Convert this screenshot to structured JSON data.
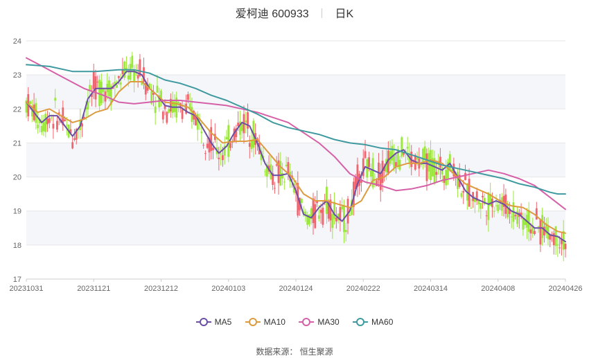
{
  "chart_data": {
    "type": "candlestick",
    "title": "爱柯迪 600933",
    "period": "日K",
    "ylim": [
      17,
      24
    ],
    "y_ticks": [
      17,
      18,
      19,
      20,
      21,
      22,
      23,
      24
    ],
    "x_tick_labels": [
      "20231031",
      "20231121",
      "20231212",
      "20240103",
      "20240124",
      "20240222",
      "20240314",
      "20240408",
      "20240426"
    ],
    "colors": {
      "up": "#f0646e",
      "down": "#9be83c",
      "ma5": "#6a4fa4",
      "ma10": "#dd9a3f",
      "ma30": "#d660a8",
      "ma60": "#3f9aa0"
    },
    "series": [
      {
        "name": "MA5",
        "color": "#6a4fa4",
        "values": [
          [
            0,
            22.2
          ],
          [
            4,
            21.9
          ],
          [
            8,
            21.6
          ],
          [
            12,
            21.8
          ],
          [
            16,
            21.8
          ],
          [
            20,
            21.5
          ],
          [
            24,
            21.2
          ],
          [
            28,
            21.5
          ],
          [
            32,
            22.3
          ],
          [
            36,
            22.6
          ],
          [
            40,
            22.6
          ],
          [
            44,
            22.6
          ],
          [
            48,
            22.8
          ],
          [
            52,
            23.1
          ],
          [
            56,
            23.1
          ],
          [
            60,
            23.0
          ],
          [
            64,
            22.6
          ],
          [
            68,
            22.4
          ],
          [
            72,
            22.1
          ],
          [
            76,
            22.05
          ],
          [
            80,
            22.05
          ],
          [
            84,
            21.9
          ],
          [
            88,
            21.8
          ],
          [
            92,
            21.4
          ],
          [
            96,
            21.0
          ],
          [
            100,
            20.7
          ],
          [
            104,
            20.9
          ],
          [
            108,
            21.3
          ],
          [
            112,
            21.6
          ],
          [
            116,
            21.5
          ],
          [
            120,
            21.0
          ],
          [
            124,
            20.4
          ],
          [
            128,
            20.05
          ],
          [
            132,
            20.05
          ],
          [
            136,
            20.1
          ],
          [
            140,
            19.6
          ],
          [
            144,
            18.9
          ],
          [
            148,
            18.8
          ],
          [
            152,
            19.1
          ],
          [
            156,
            19.3
          ],
          [
            160,
            18.9
          ],
          [
            164,
            18.7
          ],
          [
            168,
            19.0
          ],
          [
            172,
            19.8
          ],
          [
            176,
            20.3
          ],
          [
            180,
            20.2
          ],
          [
            184,
            20.1
          ],
          [
            188,
            20.5
          ],
          [
            192,
            20.7
          ],
          [
            196,
            20.8
          ],
          [
            200,
            20.5
          ],
          [
            204,
            20.4
          ],
          [
            208,
            20.4
          ],
          [
            212,
            20.3
          ],
          [
            216,
            20.2
          ],
          [
            220,
            20.4
          ],
          [
            224,
            20.0
          ],
          [
            228,
            19.6
          ],
          [
            232,
            19.4
          ],
          [
            236,
            19.3
          ],
          [
            240,
            19.2
          ],
          [
            244,
            19.3
          ],
          [
            248,
            19.2
          ],
          [
            252,
            19.0
          ],
          [
            256,
            18.9
          ],
          [
            260,
            18.7
          ],
          [
            264,
            18.5
          ],
          [
            268,
            18.5
          ],
          [
            272,
            18.3
          ],
          [
            276,
            18.25
          ],
          [
            280,
            18.1
          ]
        ]
      },
      {
        "name": "MA10",
        "color": "#dd9a3f",
        "values": [
          [
            0,
            22.2
          ],
          [
            6,
            21.9
          ],
          [
            12,
            22.0
          ],
          [
            18,
            21.8
          ],
          [
            24,
            21.6
          ],
          [
            30,
            21.7
          ],
          [
            36,
            21.9
          ],
          [
            42,
            22.0
          ],
          [
            48,
            22.5
          ],
          [
            54,
            22.8
          ],
          [
            60,
            22.8
          ],
          [
            66,
            22.5
          ],
          [
            72,
            22.2
          ],
          [
            78,
            22.15
          ],
          [
            84,
            22.05
          ],
          [
            90,
            21.7
          ],
          [
            96,
            21.3
          ],
          [
            102,
            21.0
          ],
          [
            108,
            21.05
          ],
          [
            114,
            21.05
          ],
          [
            120,
            21.1
          ],
          [
            126,
            20.7
          ],
          [
            132,
            20.3
          ],
          [
            138,
            20.0
          ],
          [
            144,
            19.5
          ],
          [
            150,
            19.3
          ],
          [
            156,
            19.3
          ],
          [
            162,
            19.2
          ],
          [
            168,
            19.1
          ],
          [
            174,
            19.3
          ],
          [
            180,
            19.9
          ],
          [
            186,
            20.0
          ],
          [
            192,
            20.3
          ],
          [
            198,
            20.4
          ],
          [
            204,
            20.4
          ],
          [
            210,
            20.5
          ],
          [
            216,
            20.4
          ],
          [
            222,
            20.1
          ],
          [
            228,
            19.8
          ],
          [
            234,
            19.65
          ],
          [
            240,
            19.5
          ],
          [
            246,
            19.3
          ],
          [
            252,
            19.15
          ],
          [
            258,
            19.1
          ],
          [
            264,
            18.9
          ],
          [
            270,
            18.6
          ],
          [
            276,
            18.4
          ],
          [
            280,
            18.35
          ]
        ]
      },
      {
        "name": "MA30",
        "color": "#d660a8",
        "values": [
          [
            0,
            23.5
          ],
          [
            10,
            23.2
          ],
          [
            20,
            22.9
          ],
          [
            30,
            22.6
          ],
          [
            40,
            22.4
          ],
          [
            48,
            22.2
          ],
          [
            56,
            22.15
          ],
          [
            64,
            22.2
          ],
          [
            72,
            22.25
          ],
          [
            80,
            22.25
          ],
          [
            88,
            22.2
          ],
          [
            96,
            22.15
          ],
          [
            104,
            22.1
          ],
          [
            112,
            22.0
          ],
          [
            120,
            21.9
          ],
          [
            128,
            21.75
          ],
          [
            136,
            21.6
          ],
          [
            144,
            21.3
          ],
          [
            152,
            21.0
          ],
          [
            160,
            20.6
          ],
          [
            168,
            20.1
          ],
          [
            176,
            19.85
          ],
          [
            184,
            19.75
          ],
          [
            192,
            19.6
          ],
          [
            200,
            19.65
          ],
          [
            208,
            19.75
          ],
          [
            216,
            19.9
          ],
          [
            224,
            20.0
          ],
          [
            232,
            20.1
          ],
          [
            240,
            20.2
          ],
          [
            248,
            20.1
          ],
          [
            256,
            19.95
          ],
          [
            264,
            19.75
          ],
          [
            272,
            19.4
          ],
          [
            280,
            19.05
          ]
        ]
      },
      {
        "name": "MA60",
        "color": "#3f9aa0",
        "values": [
          [
            0,
            23.3
          ],
          [
            12,
            23.25
          ],
          [
            24,
            23.1
          ],
          [
            36,
            23.1
          ],
          [
            48,
            23.15
          ],
          [
            56,
            23.15
          ],
          [
            64,
            23.05
          ],
          [
            72,
            22.85
          ],
          [
            80,
            22.75
          ],
          [
            88,
            22.6
          ],
          [
            96,
            22.4
          ],
          [
            104,
            22.25
          ],
          [
            112,
            22.05
          ],
          [
            120,
            21.85
          ],
          [
            128,
            21.6
          ],
          [
            136,
            21.45
          ],
          [
            144,
            21.35
          ],
          [
            152,
            21.25
          ],
          [
            160,
            21.1
          ],
          [
            168,
            21.0
          ],
          [
            176,
            20.95
          ],
          [
            184,
            20.85
          ],
          [
            192,
            20.8
          ],
          [
            200,
            20.65
          ],
          [
            208,
            20.5
          ],
          [
            216,
            20.35
          ],
          [
            224,
            20.25
          ],
          [
            232,
            20.15
          ],
          [
            240,
            20.05
          ],
          [
            248,
            19.95
          ],
          [
            256,
            19.8
          ],
          [
            264,
            19.7
          ],
          [
            272,
            19.55
          ],
          [
            276,
            19.5
          ],
          [
            280,
            19.5
          ]
        ]
      }
    ]
  },
  "legend": [
    {
      "label": "MA5",
      "color": "#6a4fa4"
    },
    {
      "label": "MA10",
      "color": "#dd9a3f"
    },
    {
      "label": "MA30",
      "color": "#d660a8"
    },
    {
      "label": "MA60",
      "color": "#3f9aa0"
    }
  ],
  "header": {
    "name": "爱柯迪 600933",
    "period": "日K"
  },
  "source_text": "数据来源： 恒生聚源"
}
